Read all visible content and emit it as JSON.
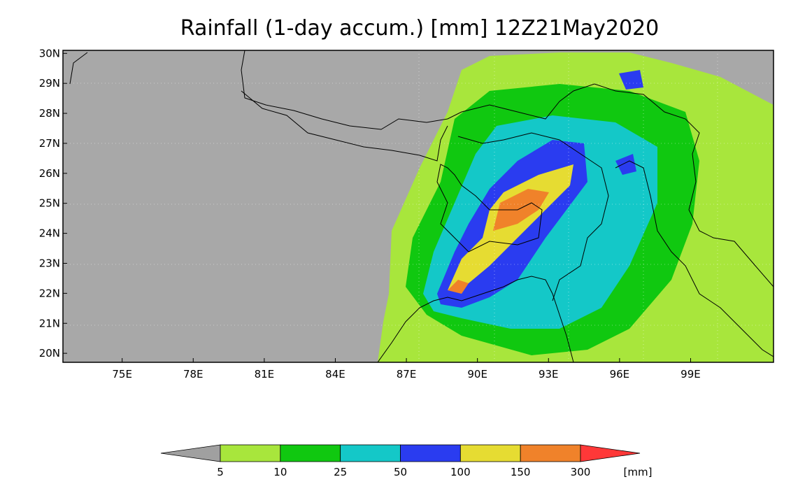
{
  "title": "Rainfall (1-day accum.) [mm] 12Z21May2020",
  "colors": {
    "background_land": "#a8a8a8",
    "border": "#000000"
  },
  "map": {
    "lon_range": [
      72.5,
      102.5
    ],
    "lat_range": [
      19.7,
      30.1
    ],
    "x_ticks": [
      {
        "value": 75,
        "label": "75E"
      },
      {
        "value": 78,
        "label": "78E"
      },
      {
        "value": 81,
        "label": "81E"
      },
      {
        "value": 84,
        "label": "84E"
      },
      {
        "value": 87,
        "label": "87E"
      },
      {
        "value": 90,
        "label": "90E"
      },
      {
        "value": 93,
        "label": "93E"
      },
      {
        "value": 96,
        "label": "96E"
      },
      {
        "value": 99,
        "label": "99E"
      }
    ],
    "y_ticks": [
      {
        "value": 30,
        "label": "30N"
      },
      {
        "value": 29,
        "label": "29N"
      },
      {
        "value": 28,
        "label": "28N"
      },
      {
        "value": 27,
        "label": "27N"
      },
      {
        "value": 26,
        "label": "26N"
      },
      {
        "value": 25,
        "label": "25N"
      },
      {
        "value": 24,
        "label": "24N"
      },
      {
        "value": 23,
        "label": "23N"
      },
      {
        "value": 22,
        "label": "22N"
      },
      {
        "value": 21,
        "label": "21N"
      },
      {
        "value": 20,
        "label": "20N"
      }
    ]
  },
  "colorbar": {
    "under_color": "#a0a0a0",
    "over_color": "#ff3838",
    "bins": [
      {
        "color": "#a8e63c"
      },
      {
        "color": "#10c810"
      },
      {
        "color": "#14c8c8"
      },
      {
        "color": "#2a3cf0"
      },
      {
        "color": "#e6dc32"
      },
      {
        "color": "#f0822a"
      }
    ],
    "labels": [
      "5",
      "10",
      "25",
      "50",
      "100",
      "150",
      "300"
    ],
    "unit": "[mm]"
  }
}
